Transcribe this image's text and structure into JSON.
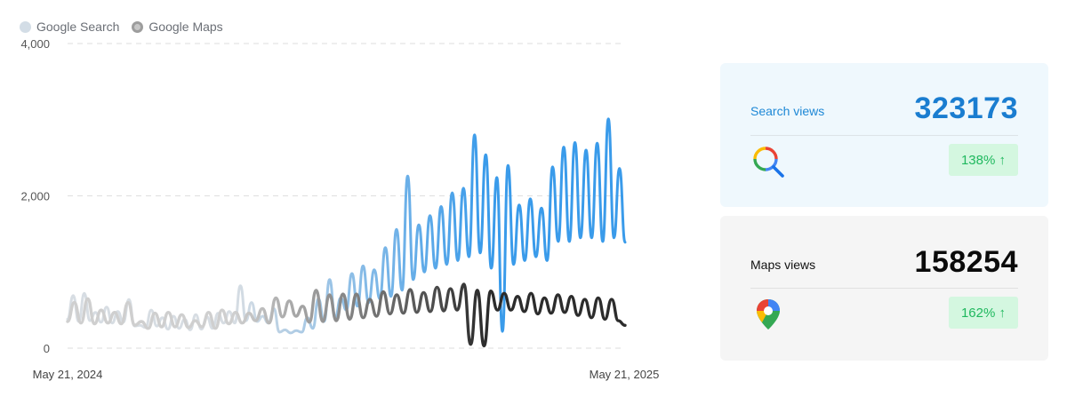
{
  "legend": {
    "search_label": "Google Search",
    "maps_label": "Google Maps"
  },
  "chart_data": {
    "type": "line",
    "ylim": [
      0,
      4000
    ],
    "yticks": [
      "0",
      "2,000",
      "4,000"
    ],
    "xticks": [
      "May 21, 2024",
      "May 21, 2025"
    ],
    "grid": true,
    "legend_position": "top-left",
    "x_start": "May 21, 2024",
    "x_end": "May 21, 2025",
    "series": [
      {
        "name": "Google Search",
        "color": "#3a9bea",
        "faded_color": "#d7dde3",
        "values": [
          380,
          690,
          350,
          720,
          360,
          470,
          340,
          540,
          330,
          480,
          340,
          640,
          290,
          300,
          270,
          500,
          290,
          400,
          250,
          420,
          260,
          380,
          240,
          440,
          250,
          410,
          260,
          460,
          330,
          480,
          330,
          820,
          360,
          600,
          350,
          420,
          330,
          520,
          210,
          240,
          200,
          230,
          210,
          400,
          260,
          650,
          350,
          900,
          400,
          660,
          500,
          980,
          550,
          1080,
          600,
          1030,
          650,
          1320,
          680,
          1560,
          760,
          2260,
          900,
          1620,
          1000,
          1740,
          1050,
          1860,
          1100,
          2040,
          1150,
          2100,
          1200,
          2800,
          1250,
          2540,
          1050,
          2240,
          220,
          2400,
          1100,
          1880,
          1150,
          1960,
          1200,
          1840,
          1150,
          2380,
          1400,
          2640,
          1400,
          2700,
          1450,
          2600,
          1450,
          2690,
          1400,
          3010,
          1450,
          2360,
          1390
        ]
      },
      {
        "name": "Google Maps",
        "color": "#2c2c2c",
        "faded_color": "#cfcfcf",
        "values": [
          350,
          600,
          330,
          650,
          320,
          500,
          330,
          470,
          320,
          600,
          300,
          350,
          260,
          460,
          280,
          470,
          280,
          440,
          270,
          360,
          280,
          470,
          260,
          500,
          320,
          470,
          330,
          460,
          360,
          520,
          330,
          660,
          410,
          620,
          420,
          550,
          340,
          760,
          350,
          700,
          360,
          710,
          380,
          710,
          400,
          640,
          420,
          740,
          450,
          700,
          460,
          770,
          470,
          730,
          480,
          800,
          490,
          780,
          500,
          840,
          50,
          760,
          30,
          750,
          500,
          720,
          500,
          680,
          480,
          720,
          450,
          660,
          460,
          700,
          470,
          680,
          430,
          640,
          400,
          660,
          380,
          640,
          360,
          300
        ]
      }
    ]
  },
  "cards": {
    "search": {
      "label": "Search views",
      "value": "323173",
      "change": "138% ↑",
      "icon": "magnifier-icon"
    },
    "maps": {
      "label": "Maps views",
      "value": "158254",
      "change": "162% ↑",
      "icon": "map-pin-icon"
    }
  }
}
